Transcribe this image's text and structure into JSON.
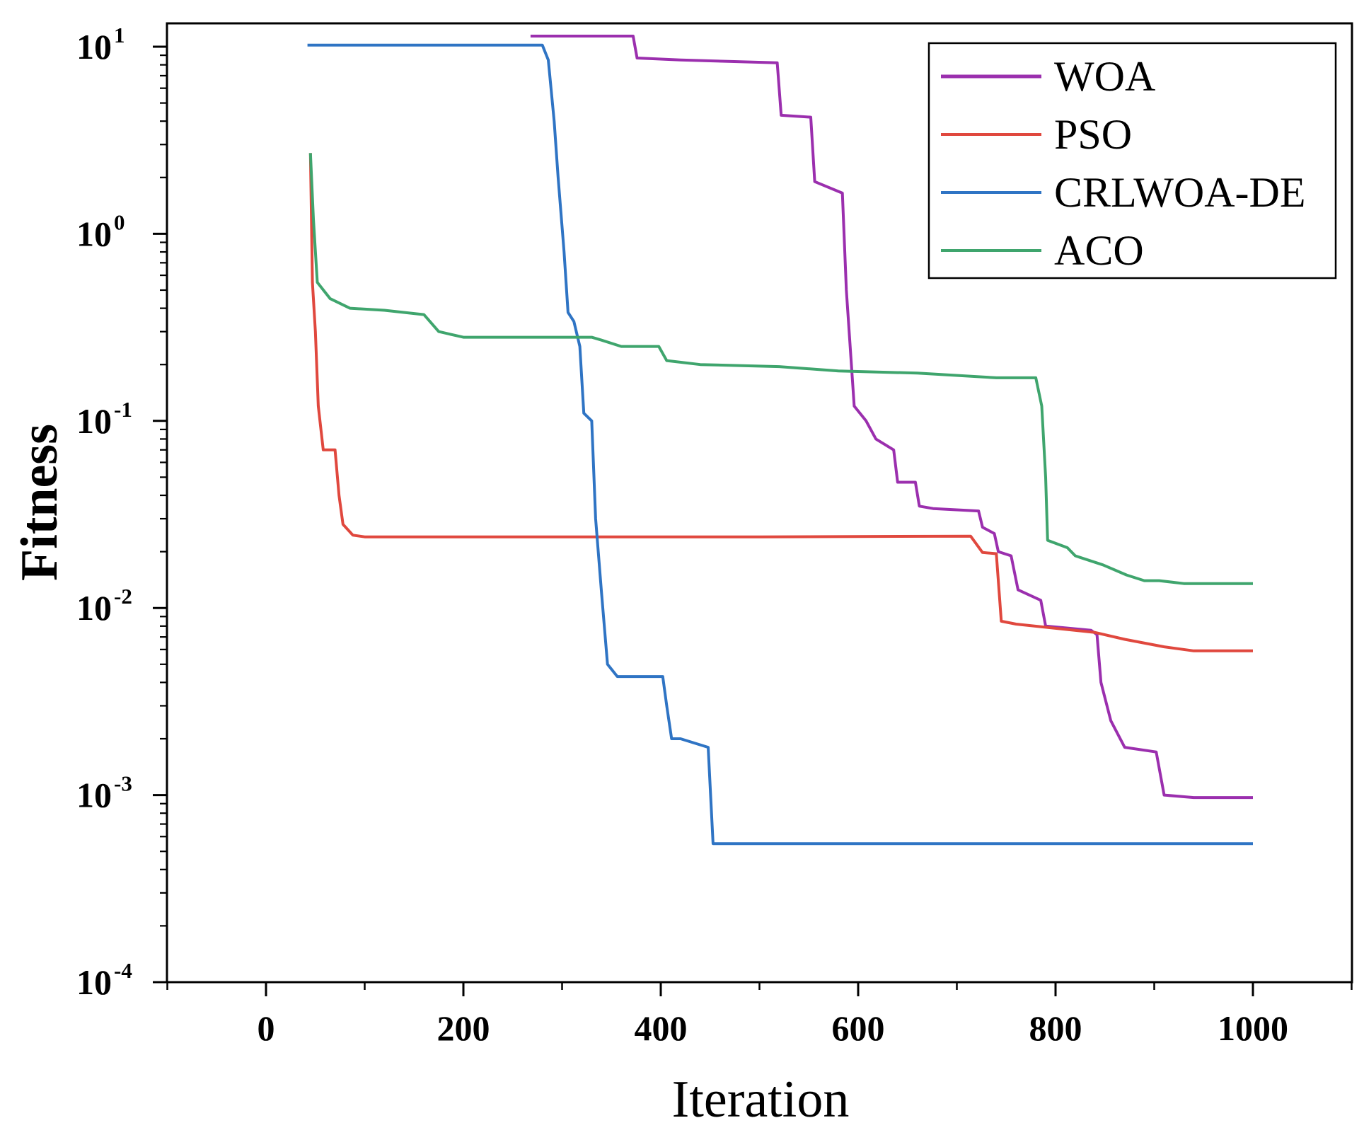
{
  "chart_data": {
    "type": "line",
    "title": "",
    "xlabel": "Iteration",
    "ylabel": "Fitness",
    "xscale": "linear",
    "yscale": "log",
    "xlim": [
      -100,
      1100
    ],
    "ylim": [
      0.0001,
      12
    ],
    "xticks": [
      0,
      200,
      400,
      600,
      800,
      1000
    ],
    "xtick_labels": [
      "0",
      "200",
      "400",
      "600",
      "800",
      "1000"
    ],
    "yticks": [
      {
        "value": 10,
        "base": "10",
        "exp": "1"
      },
      {
        "value": 1,
        "base": "10",
        "exp": "0"
      },
      {
        "value": 0.1,
        "base": "10",
        "exp": "-1"
      },
      {
        "value": 0.01,
        "base": "10",
        "exp": "-2"
      },
      {
        "value": 0.001,
        "base": "10",
        "exp": "-3"
      },
      {
        "value": 0.0001,
        "base": "10",
        "exp": "-4"
      }
    ],
    "grid": false,
    "legend_position": "top-right",
    "series": [
      {
        "name": "WOA",
        "color": "#9b2fae",
        "points": [
          [
            268,
            11.4
          ],
          [
            372,
            11.4
          ],
          [
            376,
            8.7
          ],
          [
            420,
            8.5
          ],
          [
            518,
            8.2
          ],
          [
            522,
            4.3
          ],
          [
            552,
            4.2
          ],
          [
            556,
            1.9
          ],
          [
            584,
            1.65
          ],
          [
            588,
            0.5
          ],
          [
            596,
            0.12
          ],
          [
            608,
            0.1
          ],
          [
            618,
            0.08
          ],
          [
            636,
            0.07
          ],
          [
            640,
            0.047
          ],
          [
            658,
            0.047
          ],
          [
            662,
            0.035
          ],
          [
            676,
            0.034
          ],
          [
            722,
            0.033
          ],
          [
            726,
            0.027
          ],
          [
            738,
            0.025
          ],
          [
            742,
            0.02
          ],
          [
            755,
            0.019
          ],
          [
            762,
            0.0125
          ],
          [
            785,
            0.011
          ],
          [
            790,
            0.008
          ],
          [
            836,
            0.0076
          ],
          [
            842,
            0.0072
          ],
          [
            846,
            0.004
          ],
          [
            856,
            0.0025
          ],
          [
            870,
            0.0018
          ],
          [
            902,
            0.0017
          ],
          [
            910,
            0.001
          ],
          [
            940,
            0.00097
          ],
          [
            1000,
            0.00097
          ]
        ]
      },
      {
        "name": "PSO",
        "color": "#e0483e",
        "points": [
          [
            45,
            2.7
          ],
          [
            47,
            0.55
          ],
          [
            50,
            0.3
          ],
          [
            53,
            0.12
          ],
          [
            58,
            0.07
          ],
          [
            70,
            0.07
          ],
          [
            74,
            0.04
          ],
          [
            78,
            0.028
          ],
          [
            88,
            0.0245
          ],
          [
            100,
            0.024
          ],
          [
            300,
            0.024
          ],
          [
            500,
            0.024
          ],
          [
            714,
            0.0242
          ],
          [
            726,
            0.0198
          ],
          [
            740,
            0.0195
          ],
          [
            745,
            0.0085
          ],
          [
            760,
            0.0082
          ],
          [
            840,
            0.0074
          ],
          [
            870,
            0.0068
          ],
          [
            910,
            0.0062
          ],
          [
            940,
            0.0059
          ],
          [
            1000,
            0.0059
          ]
        ]
      },
      {
        "name": "CRLWOA-DE",
        "color": "#2f74c4",
        "points": [
          [
            42,
            10.2
          ],
          [
            280,
            10.2
          ],
          [
            286,
            8.5
          ],
          [
            292,
            4.0
          ],
          [
            296,
            2.0
          ],
          [
            302,
            0.8
          ],
          [
            306,
            0.38
          ],
          [
            312,
            0.34
          ],
          [
            318,
            0.25
          ],
          [
            322,
            0.11
          ],
          [
            330,
            0.1
          ],
          [
            334,
            0.03
          ],
          [
            340,
            0.012
          ],
          [
            346,
            0.005
          ],
          [
            356,
            0.0043
          ],
          [
            402,
            0.0043
          ],
          [
            406,
            0.003
          ],
          [
            411,
            0.002
          ],
          [
            420,
            0.002
          ],
          [
            448,
            0.0018
          ],
          [
            453,
            0.00055
          ],
          [
            1000,
            0.00055
          ]
        ]
      },
      {
        "name": "ACO",
        "color": "#3fa56d",
        "points": [
          [
            45,
            2.7
          ],
          [
            48,
            1.2
          ],
          [
            52,
            0.55
          ],
          [
            65,
            0.45
          ],
          [
            85,
            0.4
          ],
          [
            120,
            0.39
          ],
          [
            160,
            0.37
          ],
          [
            175,
            0.3
          ],
          [
            200,
            0.28
          ],
          [
            330,
            0.28
          ],
          [
            340,
            0.27
          ],
          [
            360,
            0.25
          ],
          [
            398,
            0.25
          ],
          [
            406,
            0.21
          ],
          [
            440,
            0.2
          ],
          [
            520,
            0.195
          ],
          [
            580,
            0.185
          ],
          [
            660,
            0.18
          ],
          [
            740,
            0.17
          ],
          [
            780,
            0.17
          ],
          [
            786,
            0.12
          ],
          [
            790,
            0.05
          ],
          [
            792,
            0.023
          ],
          [
            812,
            0.021
          ],
          [
            820,
            0.019
          ],
          [
            848,
            0.017
          ],
          [
            872,
            0.015
          ],
          [
            890,
            0.014
          ],
          [
            905,
            0.014
          ],
          [
            930,
            0.0135
          ],
          [
            1000,
            0.0135
          ]
        ]
      }
    ]
  }
}
